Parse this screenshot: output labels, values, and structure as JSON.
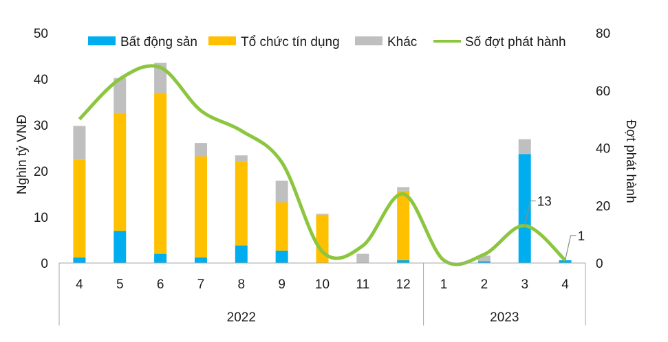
{
  "chart_data": {
    "type": "bar",
    "stacked": true,
    "categories": [
      "4",
      "5",
      "6",
      "7",
      "8",
      "9",
      "10",
      "11",
      "12",
      "1",
      "2",
      "3",
      "4"
    ],
    "groups": [
      {
        "label": "2022",
        "count": 9
      },
      {
        "label": "2023",
        "count": 4
      }
    ],
    "series": [
      {
        "name": "Bất động sản",
        "color": "#00aeef",
        "values": [
          1.2,
          7.0,
          2.0,
          1.2,
          3.8,
          2.7,
          0,
          0,
          0.6,
          0,
          0.4,
          23.7,
          0.6
        ]
      },
      {
        "name": "Tổ chức tín dụng",
        "color": "#ffc000",
        "values": [
          21.3,
          25.6,
          35.0,
          22.0,
          18.2,
          10.5,
          10.5,
          0,
          15.1,
          0,
          0,
          0,
          0
        ]
      },
      {
        "name": "Khác",
        "color": "#bfbfbf",
        "values": [
          7.3,
          7.6,
          6.5,
          2.9,
          1.4,
          4.7,
          0.2,
          2.0,
          0.8,
          0,
          1.2,
          3.2,
          0
        ]
      }
    ],
    "line_series": {
      "name": "Số đợt phát hành",
      "color": "#8cc63f",
      "axis": "right",
      "values": [
        50,
        64,
        68,
        53,
        46,
        35,
        4,
        6,
        24,
        1,
        3,
        13,
        1
      ]
    },
    "ylabel": "Nghìn tỷ VNĐ",
    "y2label": "Đợt phát hành",
    "ylim": [
      0,
      50
    ],
    "y2lim": [
      0,
      80
    ],
    "yticks": [
      "0",
      "10",
      "20",
      "30",
      "40",
      "50"
    ],
    "y2ticks": [
      "0",
      "20",
      "40",
      "60",
      "80"
    ],
    "annotations": [
      {
        "text": "13",
        "index": 11
      },
      {
        "text": "1",
        "index": 12
      }
    ],
    "legend_position": "top"
  }
}
